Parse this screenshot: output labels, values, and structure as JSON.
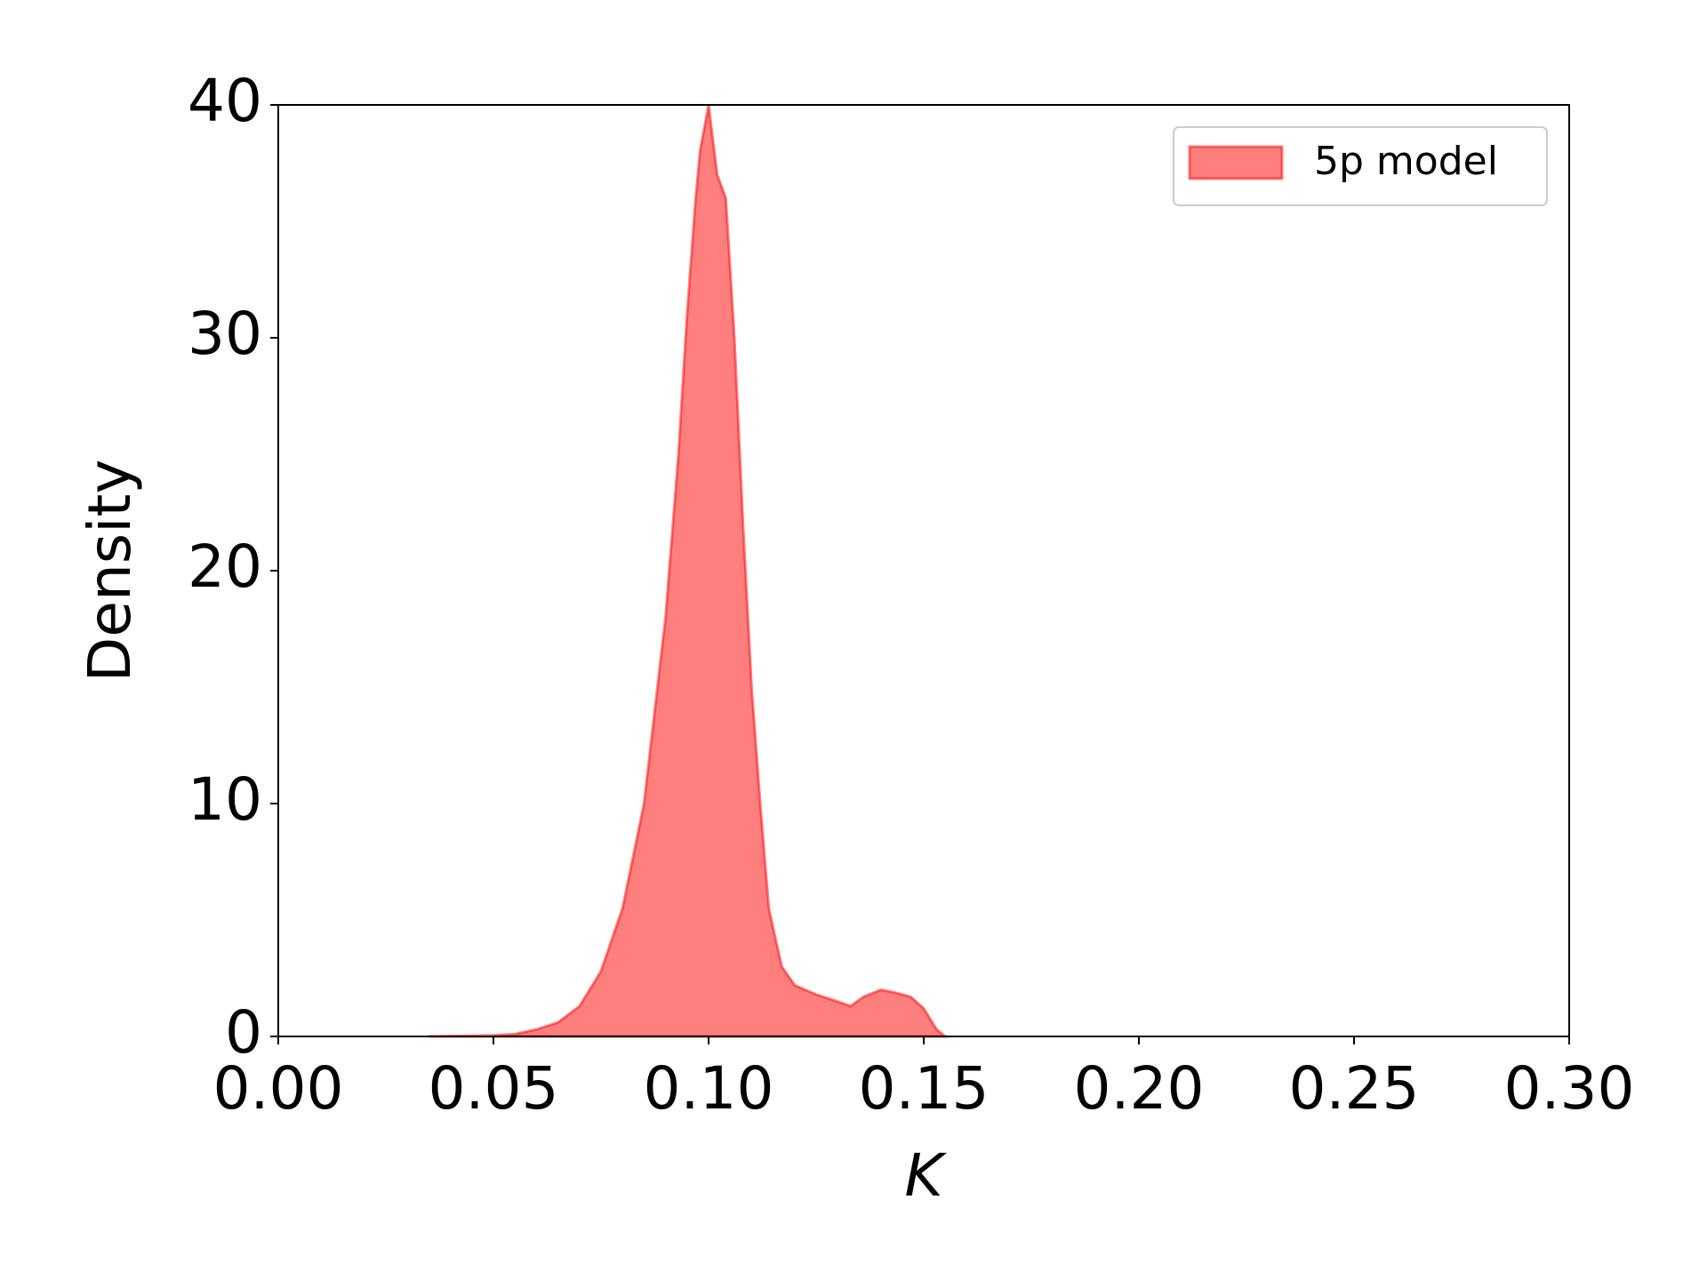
{
  "chart_data": {
    "type": "area",
    "xlabel": "K",
    "ylabel": "Density",
    "x": [
      0.035,
      0.05,
      0.055,
      0.06,
      0.065,
      0.07,
      0.075,
      0.08,
      0.085,
      0.09,
      0.093,
      0.095,
      0.097,
      0.098,
      0.1,
      0.102,
      0.104,
      0.106,
      0.108,
      0.11,
      0.112,
      0.114,
      0.117,
      0.12,
      0.125,
      0.13,
      0.133,
      0.136,
      0.14,
      0.143,
      0.147,
      0.15,
      0.153,
      0.155
    ],
    "series": [
      {
        "name": "5p model",
        "color": "#ff0000",
        "values": [
          0,
          0.05,
          0.1,
          0.3,
          0.6,
          1.3,
          2.8,
          5.5,
          10,
          18,
          25,
          31,
          36,
          38,
          40,
          37,
          36,
          30,
          22,
          15,
          10,
          5.5,
          3,
          2.2,
          1.8,
          1.5,
          1.3,
          1.7,
          2.0,
          1.9,
          1.7,
          1.2,
          0.3,
          0
        ]
      }
    ],
    "xlim": [
      0,
      0.3
    ],
    "xticks": [
      {
        "value": 0,
        "label": "0.00"
      },
      {
        "value": 0.05,
        "label": "0.05"
      },
      {
        "value": 0.1,
        "label": "0.10"
      },
      {
        "value": 0.15,
        "label": "0.15"
      },
      {
        "value": 0.2,
        "label": "0.20"
      },
      {
        "value": 0.25,
        "label": "0.25"
      },
      {
        "value": 0.3,
        "label": "0.30"
      }
    ],
    "ylim": [
      0,
      40
    ],
    "yticks": [
      0,
      10,
      20,
      30,
      40
    ],
    "legend": "upper right"
  }
}
